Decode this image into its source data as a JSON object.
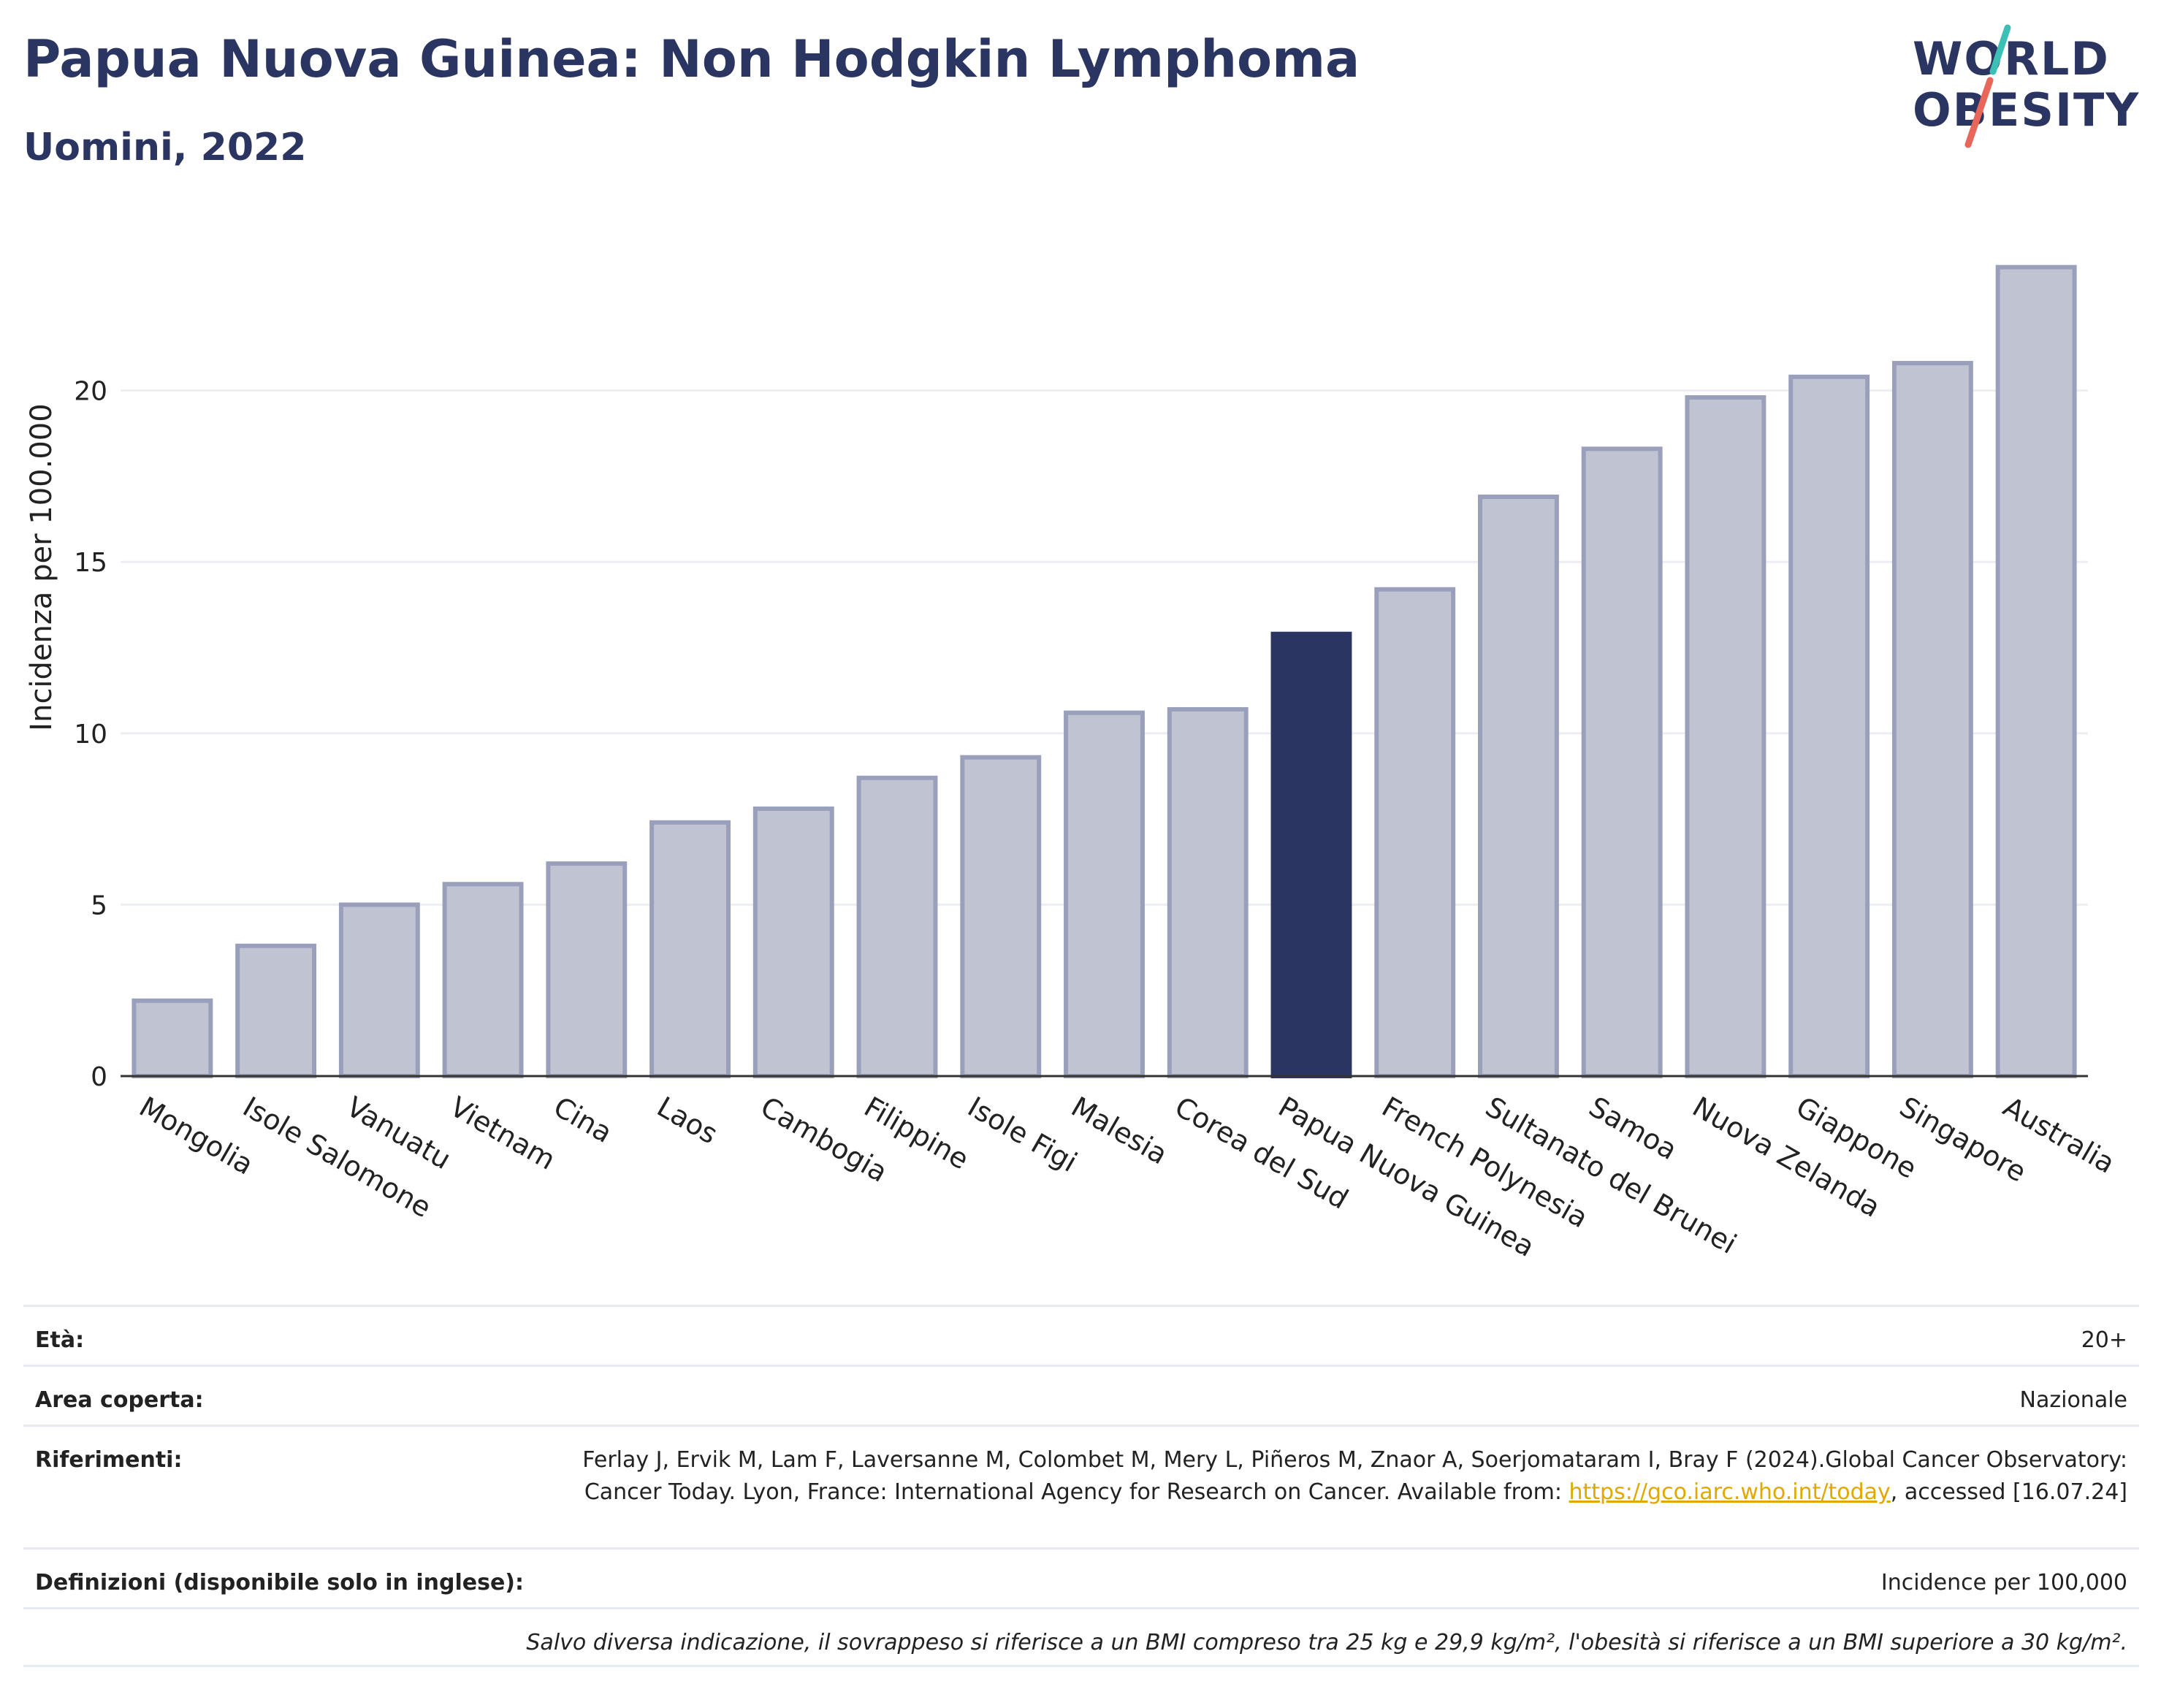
{
  "header": {
    "title": "Papua Nuova Guinea: Non Hodgkin Lymphoma",
    "subtitle": "Uomini, 2022"
  },
  "logo": {
    "line1": "WORLD",
    "line2": "OBESITY",
    "slash_colors": [
      "#3cbfb4",
      "#e8665a"
    ]
  },
  "chart_data": {
    "type": "bar",
    "categories": [
      "Mongolia",
      "Isole Salomone",
      "Vanuatu",
      "Vietnam",
      "Cina",
      "Laos",
      "Cambogia",
      "Filippine",
      "Isole Figi",
      "Malesia",
      "Corea del Sud",
      "Papua Nuova Guinea",
      "French Polynesia",
      "Sultanato del Brunei",
      "Samoa",
      "Nuova Zelanda",
      "Giappone",
      "Singapore",
      "Australia"
    ],
    "values": [
      2.2,
      3.8,
      5.0,
      5.6,
      6.2,
      7.4,
      7.8,
      8.7,
      9.3,
      10.6,
      10.7,
      12.9,
      14.2,
      16.9,
      18.3,
      19.8,
      20.4,
      20.8,
      23.6
    ],
    "highlight": "Papua Nuova Guinea",
    "title": "",
    "xlabel": "",
    "ylabel": "Incidenza per 100.000",
    "ylim": [
      0,
      25
    ],
    "yticks": [
      0,
      5,
      10,
      15,
      20
    ],
    "grid": true,
    "colors": {
      "bar": "#c0c3d1",
      "bar_border": "#9aa0bb",
      "highlight": "#2b3562",
      "grid": "#eceef3",
      "axis": "#333333"
    }
  },
  "meta": {
    "age_label": "Età:",
    "age_value": "20+",
    "area_label": "Area coperta:",
    "area_value": "Nazionale",
    "refs_label": "Riferimenti:",
    "refs_text": "Ferlay J, Ervik M, Lam F, Laversanne M, Colombet M, Mery L, Piñeros M, Znaor A, Soerjomataram I, Bray F (2024).Global Cancer Observatory: Cancer Today. Lyon, France: International Agency for Research on Cancer. Available from: ",
    "refs_link": "https://gco.iarc.who.int/today",
    "refs_suffix": ", accessed [16.07.24]",
    "defs_label": "Definizioni (disponibile solo in inglese):",
    "defs_value": "Incidence per 100,000",
    "footnote": "Salvo diversa indicazione, il sovrappeso si riferisce a un BMI compreso tra 25 kg e 29,9 kg/m², l'obesità si riferisce a un BMI superiore a 30 kg/m²."
  }
}
